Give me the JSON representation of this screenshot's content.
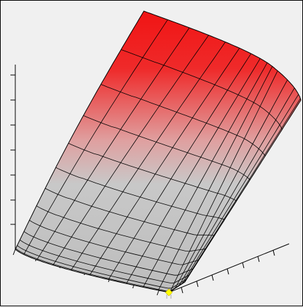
{
  "chart_data": {
    "type": "surface",
    "title": "",
    "xlabel": "",
    "ylabel": "",
    "zlabel": "",
    "grid": false,
    "legend": "none",
    "colormap": {
      "low": "#c0c0c0",
      "high": "#f01414"
    },
    "background": "#f0f0f0",
    "mesh_color": "#000000",
    "marker_color": "#ffff00"
  }
}
